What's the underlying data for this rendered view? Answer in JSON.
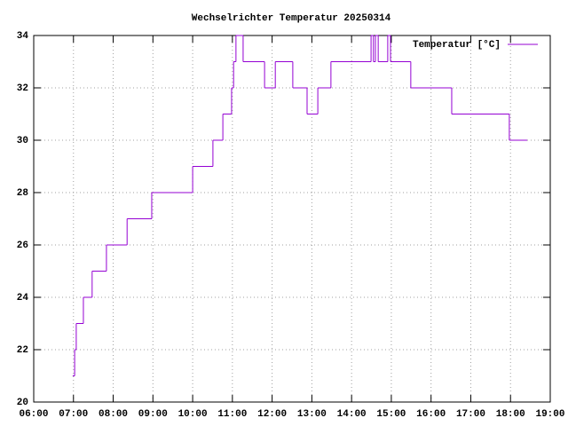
{
  "chart_data": {
    "type": "step-line",
    "title": "Wechselrichter Temperatur 20250314",
    "xlim": [
      6,
      19
    ],
    "xticks": [
      {
        "value": 6,
        "label": "06:00"
      },
      {
        "value": 7,
        "label": "07:00"
      },
      {
        "value": 8,
        "label": "08:00"
      },
      {
        "value": 9,
        "label": "09:00"
      },
      {
        "value": 10,
        "label": "10:00"
      },
      {
        "value": 11,
        "label": "11:00"
      },
      {
        "value": 12,
        "label": "12:00"
      },
      {
        "value": 13,
        "label": "13:00"
      },
      {
        "value": 14,
        "label": "14:00"
      },
      {
        "value": 15,
        "label": "15:00"
      },
      {
        "value": 16,
        "label": "16:00"
      },
      {
        "value": 17,
        "label": "17:00"
      },
      {
        "value": 18,
        "label": "18:00"
      },
      {
        "value": 19,
        "label": "19:00"
      }
    ],
    "ylim": [
      20,
      34
    ],
    "yticks": [
      20,
      22,
      24,
      26,
      28,
      30,
      32,
      34
    ],
    "grid": true,
    "legend": "top-right",
    "x": [
      6.98,
      7.03,
      7.07,
      7.25,
      7.47,
      7.83,
      8.35,
      8.97,
      10.0,
      10.51,
      10.76,
      10.98,
      11.03,
      11.09,
      11.27,
      11.81,
      12.08,
      12.52,
      12.88,
      13.15,
      13.48,
      14.49,
      14.55,
      14.6,
      14.67,
      14.91,
      14.98,
      15.49,
      16.52,
      17.97,
      18.42
    ],
    "series": [
      {
        "name": "Temperatur [°C]",
        "color": "#9400d3",
        "values": [
          21,
          22,
          23,
          24,
          25,
          26,
          27,
          28,
          29,
          30,
          31,
          32,
          33,
          34,
          33,
          32,
          33,
          32,
          31,
          32,
          33,
          34,
          33,
          34,
          33,
          34,
          33,
          32,
          31,
          30,
          30
        ]
      }
    ]
  }
}
